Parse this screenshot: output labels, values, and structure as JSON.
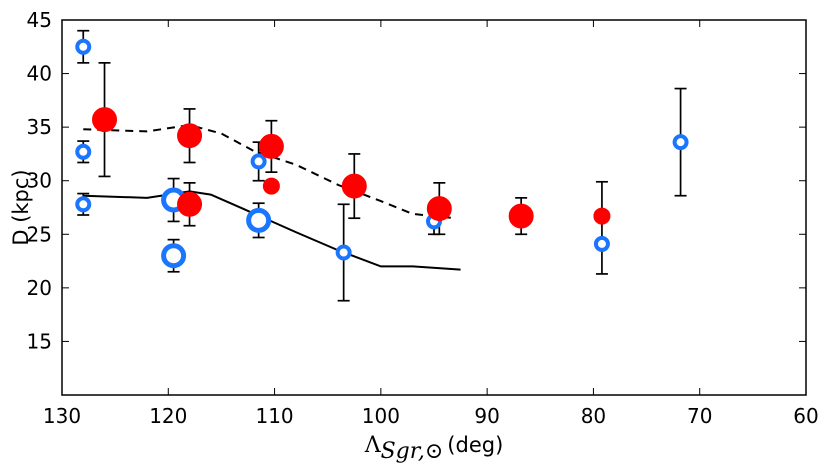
{
  "chart_data": {
    "type": "scatter",
    "title": "",
    "xlabel": {
      "symbol": "Λ",
      "subscript": "Sgr,⊙",
      "unit": "(deg)"
    },
    "ylabel": "D (kpc)",
    "xlim": [
      130,
      60
    ],
    "ylim": [
      10,
      45
    ],
    "x_ticks": [
      130,
      120,
      110,
      100,
      90,
      80,
      70,
      60
    ],
    "y_ticks": [
      15,
      20,
      25,
      30,
      35,
      40,
      45
    ],
    "x_tick_labels": [
      "130",
      "120",
      "110",
      "100",
      "90",
      "80",
      "70",
      "60"
    ],
    "y_tick_labels": [
      "15",
      "20",
      "25",
      "30",
      "35",
      "40",
      "45"
    ],
    "colors": {
      "blue": "#1a75ff",
      "red": "#ff0000",
      "line": "#000000"
    },
    "series": [
      {
        "name": "blue-small-open",
        "marker": "open-circle",
        "size": "small",
        "points": [
          {
            "x": 128,
            "y": 42.5,
            "err_low": 1.5,
            "err_high": 1.5
          },
          {
            "x": 128,
            "y": 32.7,
            "err_low": 1.0,
            "err_high": 1.0
          },
          {
            "x": 128,
            "y": 27.8,
            "err_low": 1.0,
            "err_high": 1.0
          },
          {
            "x": 111.5,
            "y": 31.8,
            "err_low": 1.8,
            "err_high": 1.8
          },
          {
            "x": 103.5,
            "y": 23.3,
            "err_low": 4.5,
            "err_high": 4.5
          },
          {
            "x": 95,
            "y": 26.2,
            "err_low": 1.2,
            "err_high": 1.2
          },
          {
            "x": 79.2,
            "y": 24.1,
            "err_low": 2.8,
            "err_high": 2.8
          },
          {
            "x": 71.8,
            "y": 33.6,
            "err_low": 5.0,
            "err_high": 5.0
          }
        ]
      },
      {
        "name": "blue-large-open",
        "marker": "open-circle",
        "size": "large",
        "points": [
          {
            "x": 119.5,
            "y": 28.2,
            "err_low": 2.0,
            "err_high": 2.0
          },
          {
            "x": 119.5,
            "y": 23.0,
            "err_low": 1.5,
            "err_high": 1.5
          },
          {
            "x": 111.5,
            "y": 26.3,
            "err_low": 1.6,
            "err_high": 1.6
          }
        ]
      },
      {
        "name": "red-large-filled",
        "marker": "filled-circle",
        "size": "large",
        "points": [
          {
            "x": 126,
            "y": 35.7,
            "err_low": 5.3,
            "err_high": 5.3
          },
          {
            "x": 118,
            "y": 34.2,
            "err_low": 2.5,
            "err_high": 2.5
          },
          {
            "x": 118,
            "y": 27.8,
            "err_low": 2.0,
            "err_high": 2.0
          },
          {
            "x": 110.3,
            "y": 33.2,
            "err_low": 2.4,
            "err_high": 2.4
          },
          {
            "x": 102.5,
            "y": 29.5,
            "err_low": 3.0,
            "err_high": 3.0
          },
          {
            "x": 94.5,
            "y": 27.4,
            "err_low": 2.4,
            "err_high": 2.4
          },
          {
            "x": 86.8,
            "y": 26.7,
            "err_low": 1.7,
            "err_high": 1.7
          }
        ]
      },
      {
        "name": "red-small-filled",
        "marker": "filled-circle",
        "size": "small",
        "points": [
          {
            "x": 110.3,
            "y": 29.5,
            "err_low": 0,
            "err_high": 0
          },
          {
            "x": 79.2,
            "y": 26.7,
            "err_low": 0,
            "err_high": 3.2
          }
        ]
      }
    ],
    "lines": [
      {
        "name": "dashed-model",
        "style": "dashed",
        "x": [
          128,
          122,
          118,
          115,
          112,
          108,
          104,
          100,
          97,
          93
        ],
        "y": [
          34.8,
          34.6,
          35.2,
          34.4,
          32.8,
          31.5,
          29.6,
          28.1,
          26.9,
          26.5
        ]
      },
      {
        "name": "solid-model",
        "style": "solid",
        "x": [
          128,
          122,
          118,
          116,
          113,
          108,
          104,
          100,
          97,
          92.5
        ],
        "y": [
          28.6,
          28.4,
          29.0,
          28.7,
          27.4,
          25.2,
          23.5,
          22.0,
          22.0,
          21.7
        ]
      }
    ]
  }
}
